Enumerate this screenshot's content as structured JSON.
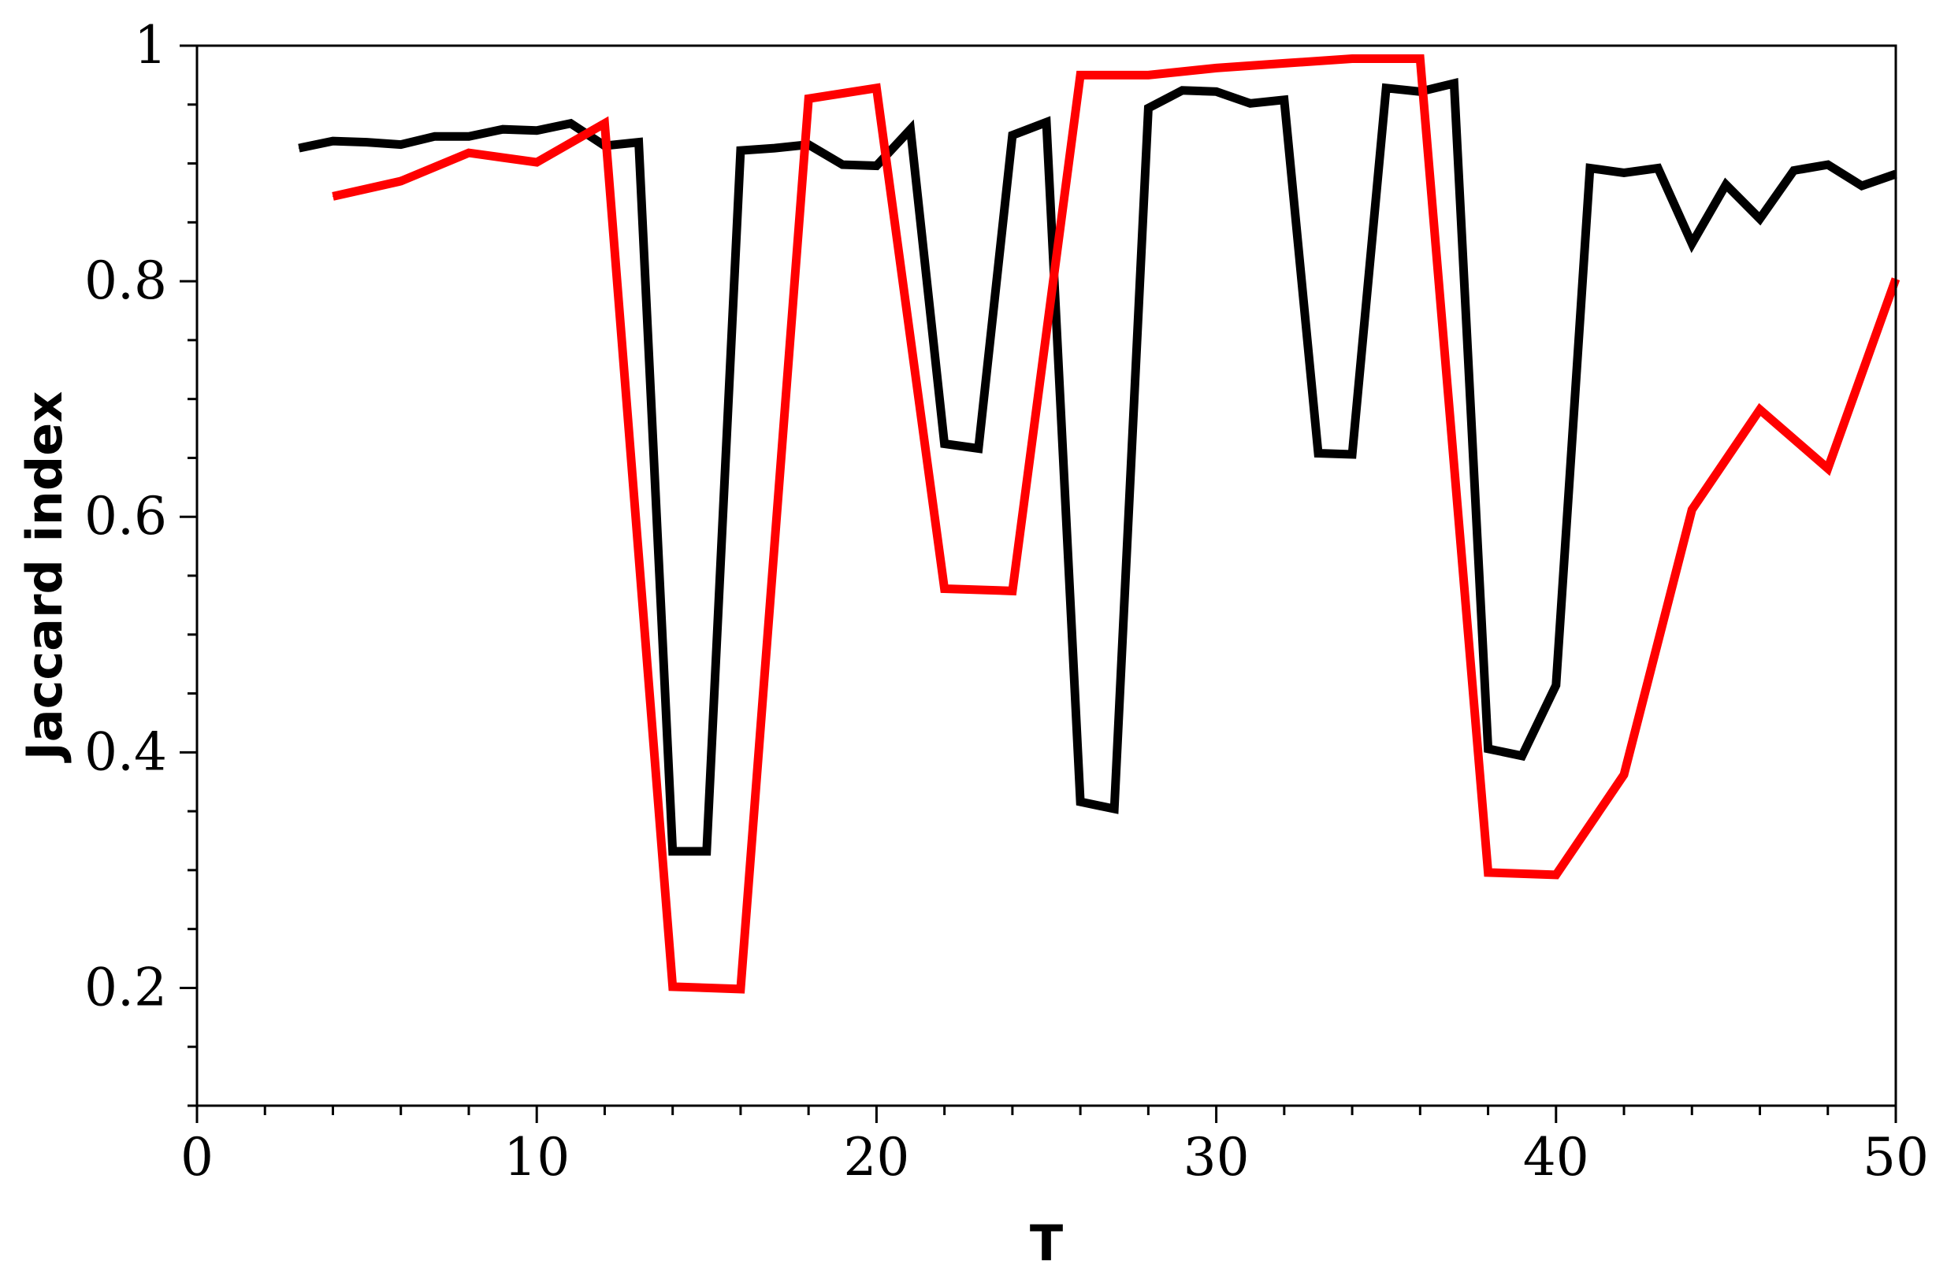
{
  "chart_data": {
    "type": "line",
    "title": "",
    "xlabel": "T",
    "ylabel": "Jaccard index",
    "xlim": [
      0,
      50
    ],
    "ylim": [
      0.1,
      1.0
    ],
    "x_ticks": [
      0,
      10,
      20,
      30,
      40,
      50
    ],
    "y_ticks": [
      0.2,
      0.4,
      0.6,
      0.8,
      1
    ],
    "x_tick_labels": [
      "0",
      "10",
      "20",
      "30",
      "40",
      "50"
    ],
    "y_tick_labels": [
      "0.2",
      "0.4",
      "0.6",
      "0.8",
      "1"
    ],
    "grid": false,
    "legend": "none",
    "series": [
      {
        "color": "#000000",
        "points": [
          [
            3,
            0.913
          ],
          [
            4,
            0.919
          ],
          [
            5,
            0.918
          ],
          [
            6,
            0.916
          ],
          [
            7,
            0.923
          ],
          [
            8,
            0.923
          ],
          [
            9,
            0.929
          ],
          [
            10,
            0.928
          ],
          [
            11,
            0.934
          ],
          [
            12,
            0.915
          ],
          [
            13,
            0.918
          ],
          [
            14,
            0.316
          ],
          [
            15,
            0.316
          ],
          [
            16,
            0.911
          ],
          [
            17,
            0.913
          ],
          [
            18,
            0.916
          ],
          [
            19,
            0.899
          ],
          [
            20,
            0.898
          ],
          [
            21,
            0.929
          ],
          [
            22,
            0.662
          ],
          [
            23,
            0.658
          ],
          [
            24,
            0.924
          ],
          [
            25,
            0.935
          ],
          [
            26,
            0.358
          ],
          [
            27,
            0.352
          ],
          [
            28,
            0.947
          ],
          [
            29,
            0.962
          ],
          [
            30,
            0.961
          ],
          [
            31,
            0.951
          ],
          [
            32,
            0.954
          ],
          [
            33,
            0.654
          ],
          [
            34,
            0.653
          ],
          [
            35,
            0.964
          ],
          [
            36,
            0.961
          ],
          [
            37,
            0.968
          ],
          [
            38,
            0.403
          ],
          [
            39,
            0.397
          ],
          [
            40,
            0.457
          ],
          [
            41,
            0.896
          ],
          [
            42,
            0.892
          ],
          [
            43,
            0.896
          ],
          [
            44,
            0.832
          ],
          [
            45,
            0.882
          ],
          [
            46,
            0.853
          ],
          [
            47,
            0.894
          ],
          [
            48,
            0.899
          ],
          [
            49,
            0.881
          ],
          [
            50,
            0.891
          ]
        ]
      },
      {
        "color": "#ff0000",
        "points": [
          [
            4,
            0.872
          ],
          [
            6,
            0.885
          ],
          [
            8,
            0.909
          ],
          [
            10,
            0.901
          ],
          [
            12,
            0.934
          ],
          [
            14,
            0.201
          ],
          [
            16,
            0.199
          ],
          [
            18,
            0.955
          ],
          [
            20,
            0.964
          ],
          [
            22,
            0.539
          ],
          [
            24,
            0.537
          ],
          [
            26,
            0.975
          ],
          [
            28,
            0.975
          ],
          [
            30,
            0.981
          ],
          [
            32,
            0.985
          ],
          [
            34,
            0.989
          ],
          [
            36,
            0.989
          ],
          [
            38,
            0.298
          ],
          [
            40,
            0.296
          ],
          [
            42,
            0.381
          ],
          [
            44,
            0.606
          ],
          [
            46,
            0.691
          ],
          [
            48,
            0.641
          ],
          [
            50,
            0.802
          ]
        ]
      }
    ]
  }
}
